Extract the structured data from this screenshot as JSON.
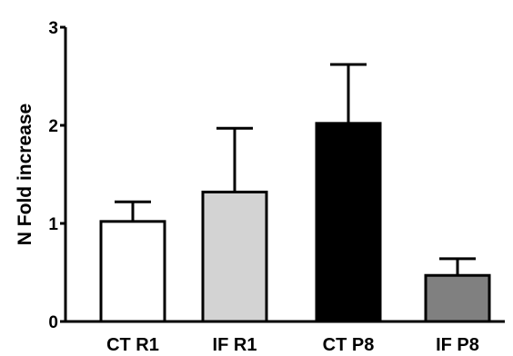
{
  "chart_data": {
    "type": "bar",
    "title": "",
    "xlabel": "",
    "ylabel": "N Fold increase",
    "ylim": [
      0,
      3
    ],
    "yticks": [
      0,
      1,
      2,
      3
    ],
    "grid": false,
    "legend": "none",
    "categories": [
      "CT R1",
      "IF R1",
      "CT P8",
      "IF P8"
    ],
    "values": [
      1.02,
      1.32,
      2.02,
      0.47
    ],
    "error_upper": [
      1.22,
      1.97,
      2.62,
      0.64
    ],
    "fill_colors": [
      "#ffffff",
      "#d3d3d3",
      "#000000",
      "#808080"
    ]
  }
}
